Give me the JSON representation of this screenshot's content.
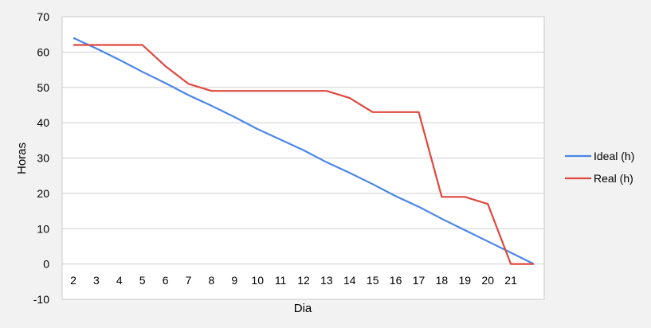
{
  "chart_data": {
    "type": "line",
    "xlabel": "Dia",
    "ylabel": "Horas",
    "ylim": [
      -10,
      70
    ],
    "yticks": [
      -10,
      0,
      10,
      20,
      30,
      40,
      50,
      60,
      70
    ],
    "categories": [
      "2",
      "3",
      "4",
      "5",
      "6",
      "7",
      "8",
      "9",
      "10",
      "11",
      "12",
      "13",
      "14",
      "15",
      "16",
      "17",
      "18",
      "19",
      "20",
      "21",
      ""
    ],
    "grid": true,
    "legend_position": "right",
    "series": [
      {
        "name": "Ideal (h)",
        "color": "#4a86e8",
        "values": [
          64,
          61,
          57.8,
          54.4,
          51.2,
          47.8,
          44.8,
          41.6,
          38.2,
          35.2,
          32.2,
          28.8,
          25.8,
          22.6,
          19.2,
          16.2,
          12.8,
          9.6,
          6.4,
          3.2,
          0
        ]
      },
      {
        "name": "Real (h)",
        "color": "#e0473e",
        "values": [
          62,
          62,
          62,
          62,
          56,
          51,
          49,
          49,
          49,
          49,
          49,
          49,
          47,
          43,
          43,
          43,
          19,
          19,
          17,
          0,
          0
        ]
      }
    ]
  }
}
